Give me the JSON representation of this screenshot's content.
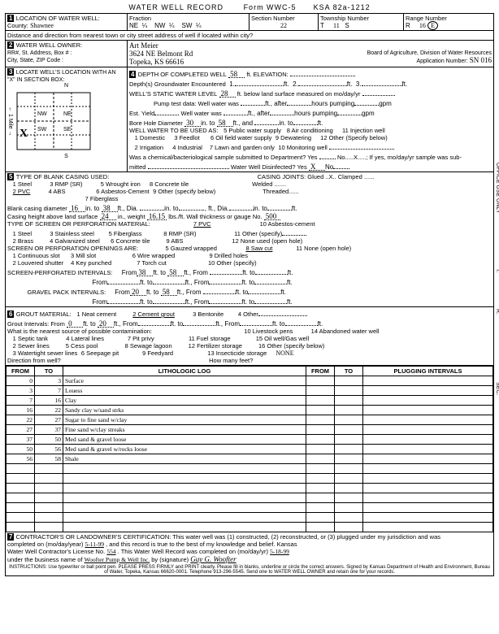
{
  "form": {
    "title": "WATER WELL RECORD",
    "form_no": "Form WWC-5",
    "ksa": "KSA 82a-1212"
  },
  "section1": {
    "heading": "LOCATION OF WATER WELL:",
    "county_label": "County:",
    "county": "Shawnee",
    "fraction_label": "Fraction",
    "ne": "NE",
    "nw": "NW",
    "sw": "SW",
    "section_label": "Section Number",
    "section": "22",
    "township_label": "Township Number",
    "township_t": "T",
    "township": "11",
    "township_s": "S",
    "range_label": "Range Number",
    "range_r": "R",
    "range": "16",
    "distance_label": "Distance and direction from nearest town or city street address of well if located within city?"
  },
  "section2": {
    "heading": "WATER WELL OWNER:",
    "rr_label": "RR#, St. Address, Box # :",
    "city_label": "City, State, ZIP Code :",
    "name": "Art Meier",
    "addr": "3624 NE Belmont Rd",
    "city": "Topeka, KS 66616",
    "board": "Board of Agriculture, Division of Water Resources",
    "app_label": "Application Number:",
    "app_no": "SN 016"
  },
  "section3": {
    "heading": "LOCATE WELL'S LOCATION WITH AN \"X\" IN SECTION BOX:"
  },
  "section4": {
    "heading": "DEPTH OF COMPLETED WELL",
    "depth": "58",
    "elev_label": "ft. ELEVATION:",
    "gw_label": "Depth(s) Groundwater Encountered",
    "gw1": "1",
    "gw2": "2",
    "gw3": "3",
    "static_label": "WELL'S STATIC WATER LEVEL",
    "static": "28",
    "static_suffix": "ft. below land surface measured on mo/day/yr",
    "pump_label": "Pump test data:  Well water was",
    "est_label": "Est. Yield",
    "est2": "Well water was",
    "bore_label": "Bore Hole Diameter",
    "bore_dia": "30",
    "bore_to": "58",
    "use_label": "WELL WATER TO BE USED AS:",
    "u1": "1  Domestic",
    "u3": "3  Feedlot",
    "u5": "5  Public water supply",
    "u8": "8  Air conditioning",
    "u11": "11  Injection well",
    "u2": "2  Irrigation",
    "u4": "4  Industrial",
    "u6": "6  Oil field water supply",
    "u9": "9  Dewatering",
    "u12": "12  Other (Specify below)",
    "u7": "7  Lawn and garden only",
    "u10": "10  Monitoring well",
    "chem_label": "Was a chemical/bacteriological sample submitted to Department?  Yes",
    "chem2": "No.....X.....; If yes, mo/day/yr sample was sub-",
    "mitted": "mitted",
    "disinfect": "Water Well Disinfected?   Yes",
    "disinfect_x": "X"
  },
  "section5": {
    "heading": "TYPE OF BLANK CASING USED:",
    "c1": "1  Steel",
    "c3": "3  RMP (SR)",
    "c5": "5  Wrought iron",
    "c8": "8  Concrete tile",
    "c2": "2  PVC",
    "c4": "4  ABS",
    "c6": "6  Asbestos-Cement",
    "c9": "9  Other (specify below)",
    "c7": "7  Fiberglass",
    "joints": "CASING JOINTS:  Glued ..X..   Clamped ......",
    "welded": "Welded .......",
    "threaded": "Threaded......",
    "blank_label": "Blank casing diameter",
    "blank_dia": "16",
    "blank_to": "38",
    "casing_ht_label": "Casing height above land surface",
    "casing_ht": "24",
    "weight": "in., weight",
    "wt": "16.15",
    "gauge": "lbs./ft.  Wall thickness or gauge No.",
    "gauge_v": "500",
    "screen_hdr": "TYPE OF SCREEN OR PERFORATION MATERIAL:",
    "s1": "1  Steel",
    "s3": "3  Stainless steel",
    "s5": "5  Fiberglass",
    "s7": "7  PVC",
    "s8": "8  RMP (SR)",
    "s10": "10  Asbestos-cement",
    "s11": "11  Other (specify)",
    "s2": "2  Brass",
    "s4": "4  Galvanized steel",
    "s6": "6  Concrete tile",
    "s9": "9  ABS",
    "s12": "12  None used (open hole)",
    "open_hdr": "SCREEN OR PERFORATION OPENINGS ARE:",
    "o1": "1  Continuous slot",
    "o3": "3  Mill slot",
    "o5": "5  Gauzed wrapped",
    "o8": "8  Saw cut",
    "o11": "11  None (open hole)",
    "o2": "2  Louvered shutter",
    "o4": "4  Key punched",
    "o6": "6  Wire wrapped",
    "o9": "9  Drilled holes",
    "o7": "7  Torch cut",
    "o10": "10  Other (specify)",
    "sp_label": "SCREEN-PERFORATED INTERVALS:",
    "sp_from": "38",
    "sp_to": "58",
    "gp_label": "GRAVEL PACK INTERVALS:",
    "gp_from": "20",
    "gp_to": "58"
  },
  "section6": {
    "heading": "GROUT MATERIAL:",
    "g1": "1  Neat cement",
    "g2": "2  Cement grout",
    "g3": "3  Bentonite",
    "g4": "4  Other",
    "gi_label": "Grout Intervals:   From",
    "gi_from": "0",
    "gi_to": "20",
    "contam": "What is the nearest source of possible contamination:",
    "p1": "1  Septic tank",
    "p4": "4  Lateral lines",
    "p7": "7  Pit privy",
    "p10": "10  Livestock pens",
    "p11": "11  Fuel storage",
    "p14": "14  Abandoned water well",
    "p15": "15  Oil well/Gas well",
    "p2": "2  Sewer lines",
    "p5": "5  Cess pool",
    "p8": "8  Sewage lagoon",
    "p12": "12  Fertilizer storage",
    "p16": "16  Other (specify below)",
    "p3": "3  Watertight sewer lines",
    "p6": "6  Seepage pit",
    "p9": "9  Feedyard",
    "p13": "13  Insecticide storage",
    "none": "NONE",
    "dir": "Direction from well?",
    "how": "How many feet?"
  },
  "log": {
    "cols": {
      "from": "FROM",
      "to": "TO",
      "litho": "LITHOLOGIC LOG",
      "from2": "FROM",
      "to2": "TO",
      "plug": "PLUGGING INTERVALS"
    },
    "rows": [
      {
        "from": "0",
        "to": "3",
        "d": "Surface"
      },
      {
        "from": "3",
        "to": "7",
        "d": "Louess"
      },
      {
        "from": "7",
        "to": "16",
        "d": "Clay"
      },
      {
        "from": "16",
        "to": "22",
        "d": "Sandy clay w/sand strks"
      },
      {
        "from": "22",
        "to": "27",
        "d": "Sugar to fine sand w/clay"
      },
      {
        "from": "27",
        "to": "37",
        "d": "Fine sand w/clay streaks"
      },
      {
        "from": "37",
        "to": "50",
        "d": "Med sand & gravel loose"
      },
      {
        "from": "50",
        "to": "56",
        "d": "Med sand & gravel w/rocks loose"
      },
      {
        "from": "56",
        "to": "58",
        "d": "Shale"
      },
      {
        "from": "",
        "to": "",
        "d": ""
      },
      {
        "from": "",
        "to": "",
        "d": ""
      },
      {
        "from": "",
        "to": "",
        "d": ""
      },
      {
        "from": "",
        "to": "",
        "d": ""
      },
      {
        "from": "",
        "to": "",
        "d": ""
      },
      {
        "from": "",
        "to": "",
        "d": ""
      },
      {
        "from": "",
        "to": "",
        "d": ""
      }
    ]
  },
  "section7": {
    "text1": "CONTRACTOR'S OR LANDOWNER'S CERTIFICATION: This water well was (1) constructed, (2) reconstructed, or (3) plugged under my jurisdiction and was",
    "text2": "completed on (mo/day/year)",
    "date1": "5-11-99",
    "text3": ", and this record is true to the best of my knowledge and belief. Kansas",
    "lic": "Water Well Contractor's License No.",
    "lic_no": "554",
    "lic2": ". This Water Well Record was completed on (mo/day/yr)",
    "date2": "5-18-99",
    "biz": "under the business name of",
    "biz_name": "Woofter Pump & Well Inc.",
    "sig": "by (signature)",
    "instr": "INSTRUCTIONS: Use typewriter or ball point pen. PLEASE PRESS FIRMLY and PRINT clearly. Please fill in blanks, underline or circle the correct answers.  Signed by Kansas Department of Health and Environment, Bureau of Water, Topeka, Kansas 66620-0001. Telephone  913-296-5545. Send one to WATER WELL OWNER and retain one for your records."
  }
}
